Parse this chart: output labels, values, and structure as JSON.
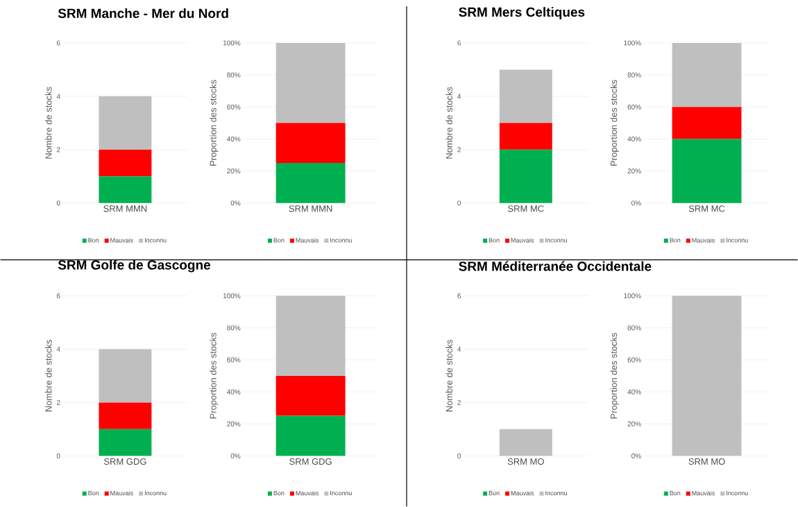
{
  "chart_data": [
    {
      "type": "bar",
      "title": "SRM Manche - Mer du Nord",
      "stacked": true,
      "categories": [
        "SRM MMN"
      ],
      "ylabel": "Nombre de stocks",
      "ylim": [
        0,
        6
      ],
      "yticks": [
        0,
        2,
        4,
        6
      ],
      "grid": "y",
      "legend": "bottom",
      "series": [
        {
          "name": "Bon",
          "color": "#00b050",
          "values": [
            1
          ]
        },
        {
          "name": "Mauvais",
          "color": "#ff0000",
          "values": [
            1
          ]
        },
        {
          "name": "Inconnu",
          "color": "#bfbfbf",
          "values": [
            2
          ]
        }
      ]
    },
    {
      "type": "bar",
      "stacked": true,
      "categories": [
        "SRM MMN"
      ],
      "ylabel": "Proportion des stocks",
      "ylim": [
        0,
        100
      ],
      "yticks": [
        {
          "value": 0,
          "label": "0%"
        },
        {
          "value": 20,
          "label": "20%"
        },
        {
          "value": 40,
          "label": "40%"
        },
        {
          "value": 60,
          "label": "60%"
        },
        {
          "value": 80,
          "label": "80%"
        },
        {
          "value": 100,
          "label": "100%"
        }
      ],
      "grid": "y",
      "legend": "bottom",
      "series": [
        {
          "name": "Bon",
          "color": "#00b050",
          "values": [
            25
          ]
        },
        {
          "name": "Mauvais",
          "color": "#ff0000",
          "values": [
            25
          ]
        },
        {
          "name": "Inconnu",
          "color": "#bfbfbf",
          "values": [
            50
          ]
        }
      ]
    },
    {
      "type": "bar",
      "title": "SRM Mers Celtiques",
      "stacked": true,
      "categories": [
        "SRM MC"
      ],
      "ylabel": "Nombre de stocks",
      "ylim": [
        0,
        6
      ],
      "yticks": [
        0,
        2,
        4,
        6
      ],
      "grid": "y",
      "legend": "bottom",
      "series": [
        {
          "name": "Bon",
          "color": "#00b050",
          "values": [
            2
          ]
        },
        {
          "name": "Mauvais",
          "color": "#ff0000",
          "values": [
            1
          ]
        },
        {
          "name": "Inconnu",
          "color": "#bfbfbf",
          "values": [
            2
          ]
        }
      ]
    },
    {
      "type": "bar",
      "stacked": true,
      "categories": [
        "SRM MC"
      ],
      "ylabel": "Proportion des stocks",
      "ylim": [
        0,
        100
      ],
      "yticks": [
        {
          "value": 0,
          "label": "0%"
        },
        {
          "value": 20,
          "label": "20%"
        },
        {
          "value": 40,
          "label": "40%"
        },
        {
          "value": 60,
          "label": "60%"
        },
        {
          "value": 80,
          "label": "80%"
        },
        {
          "value": 100,
          "label": "100%"
        }
      ],
      "grid": "y",
      "legend": "bottom",
      "series": [
        {
          "name": "Bon",
          "color": "#00b050",
          "values": [
            40
          ]
        },
        {
          "name": "Mauvais",
          "color": "#ff0000",
          "values": [
            20
          ]
        },
        {
          "name": "Inconnu",
          "color": "#bfbfbf",
          "values": [
            40
          ]
        }
      ]
    },
    {
      "type": "bar",
      "title": "SRM Golfe de Gascogne",
      "stacked": true,
      "categories": [
        "SRM GDG"
      ],
      "ylabel": "Nombre de stocks",
      "ylim": [
        0,
        6
      ],
      "yticks": [
        0,
        2,
        4,
        6
      ],
      "grid": "y",
      "legend": "bottom",
      "series": [
        {
          "name": "Bon",
          "color": "#00b050",
          "values": [
            1
          ]
        },
        {
          "name": "Mauvais",
          "color": "#ff0000",
          "values": [
            1
          ]
        },
        {
          "name": "Inconnu",
          "color": "#bfbfbf",
          "values": [
            2
          ]
        }
      ]
    },
    {
      "type": "bar",
      "stacked": true,
      "categories": [
        "SRM GDG"
      ],
      "ylabel": "Proportion des stocks",
      "ylim": [
        0,
        100
      ],
      "yticks": [
        {
          "value": 0,
          "label": "0%"
        },
        {
          "value": 20,
          "label": "20%"
        },
        {
          "value": 40,
          "label": "40%"
        },
        {
          "value": 60,
          "label": "60%"
        },
        {
          "value": 80,
          "label": "80%"
        },
        {
          "value": 100,
          "label": "100%"
        }
      ],
      "grid": "y",
      "legend": "bottom",
      "series": [
        {
          "name": "Bon",
          "color": "#00b050",
          "values": [
            25
          ]
        },
        {
          "name": "Mauvais",
          "color": "#ff0000",
          "values": [
            25
          ]
        },
        {
          "name": "Inconnu",
          "color": "#bfbfbf",
          "values": [
            50
          ]
        }
      ]
    },
    {
      "type": "bar",
      "title": "SRM Méditerranée Occidentale",
      "stacked": true,
      "categories": [
        "SRM MO"
      ],
      "ylabel": "Nombre de stocks",
      "ylim": [
        0,
        6
      ],
      "yticks": [
        0,
        2,
        4,
        6
      ],
      "grid": "y",
      "legend": "bottom",
      "series": [
        {
          "name": "Bon",
          "color": "#00b050",
          "values": [
            0
          ]
        },
        {
          "name": "Mauvais",
          "color": "#ff0000",
          "values": [
            0
          ]
        },
        {
          "name": "Inconnu",
          "color": "#bfbfbf",
          "values": [
            1
          ]
        }
      ]
    },
    {
      "type": "bar",
      "stacked": true,
      "categories": [
        "SRM MO"
      ],
      "ylabel": "Proportion des stocks",
      "ylim": [
        0,
        100
      ],
      "yticks": [
        {
          "value": 0,
          "label": "0%"
        },
        {
          "value": 20,
          "label": "20%"
        },
        {
          "value": 40,
          "label": "40%"
        },
        {
          "value": 60,
          "label": "60%"
        },
        {
          "value": 80,
          "label": "80%"
        },
        {
          "value": 100,
          "label": "100%"
        }
      ],
      "grid": "y",
      "legend": "bottom",
      "series": [
        {
          "name": "Bon",
          "color": "#00b050",
          "values": [
            0
          ]
        },
        {
          "name": "Mauvais",
          "color": "#ff0000",
          "values": [
            0
          ]
        },
        {
          "name": "Inconnu",
          "color": "#bfbfbf",
          "values": [
            100
          ]
        }
      ]
    }
  ]
}
